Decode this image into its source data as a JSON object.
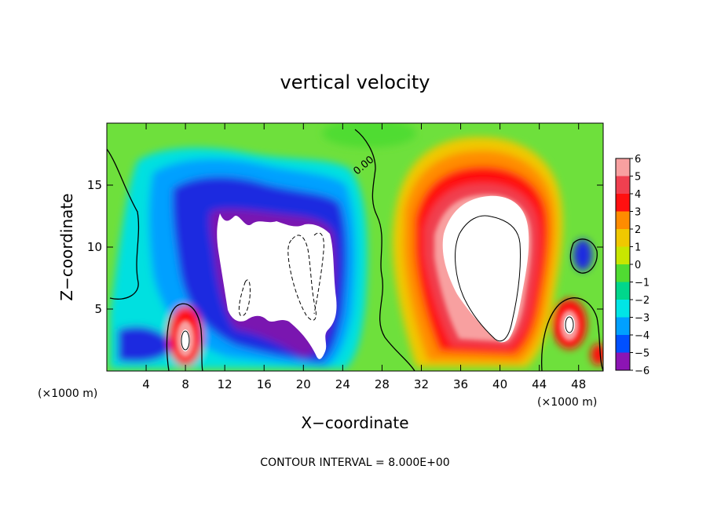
{
  "chart_data": {
    "type": "heatmap",
    "title": "vertical velocity",
    "xlabel": "X−coordinate",
    "ylabel": "Z−coordinate",
    "x_unit_left": "(×1000 m)",
    "x_unit_right": "(×1000 m)",
    "xlim": [
      0,
      50.5
    ],
    "ylim": [
      0,
      20
    ],
    "x_ticks": [
      4,
      8,
      12,
      16,
      20,
      24,
      28,
      32,
      36,
      40,
      44,
      48
    ],
    "x_tick_labels": [
      "4",
      "8",
      "12",
      "16",
      "20",
      "24",
      "28",
      "32",
      "36",
      "40",
      "44",
      "48"
    ],
    "y_ticks": [
      5,
      10,
      15
    ],
    "y_tick_labels": [
      "5",
      "10",
      "15"
    ],
    "colorbar": {
      "levels": [
        6,
        5,
        4,
        3,
        2,
        1,
        0,
        -1,
        -2,
        -3,
        -4,
        -5,
        -6
      ],
      "labels": [
        "6",
        "5",
        "4",
        "3",
        "2",
        "1",
        "0",
        "−1",
        "−2",
        "−3",
        "−4",
        "−5",
        "−6"
      ],
      "colors": [
        "#f8a0a0",
        "#f04050",
        "#ff1010",
        "#ff8c00",
        "#f0c800",
        "#c8e600",
        "#50dc32",
        "#00d78c",
        "#00e6e6",
        "#00a0ff",
        "#0050ff",
        "#1414c8",
        "#8c14b4"
      ]
    },
    "contour_label": "0.00",
    "contour_interval_text": "CONTOUR INTERVAL = 8.000E+00",
    "features": [
      {
        "kind": "downdraft",
        "x_center": 16.5,
        "z_center": 10.0,
        "w_min": -14
      },
      {
        "kind": "updraft",
        "x_center": 38.0,
        "z_center": 10.0,
        "w_max": 16
      },
      {
        "kind": "updraft",
        "x_center": 7.9,
        "z_center": 2.8,
        "w_max": 9
      },
      {
        "kind": "updraft",
        "x_center": 46.5,
        "z_center": 4.0,
        "w_max": 9
      }
    ]
  }
}
